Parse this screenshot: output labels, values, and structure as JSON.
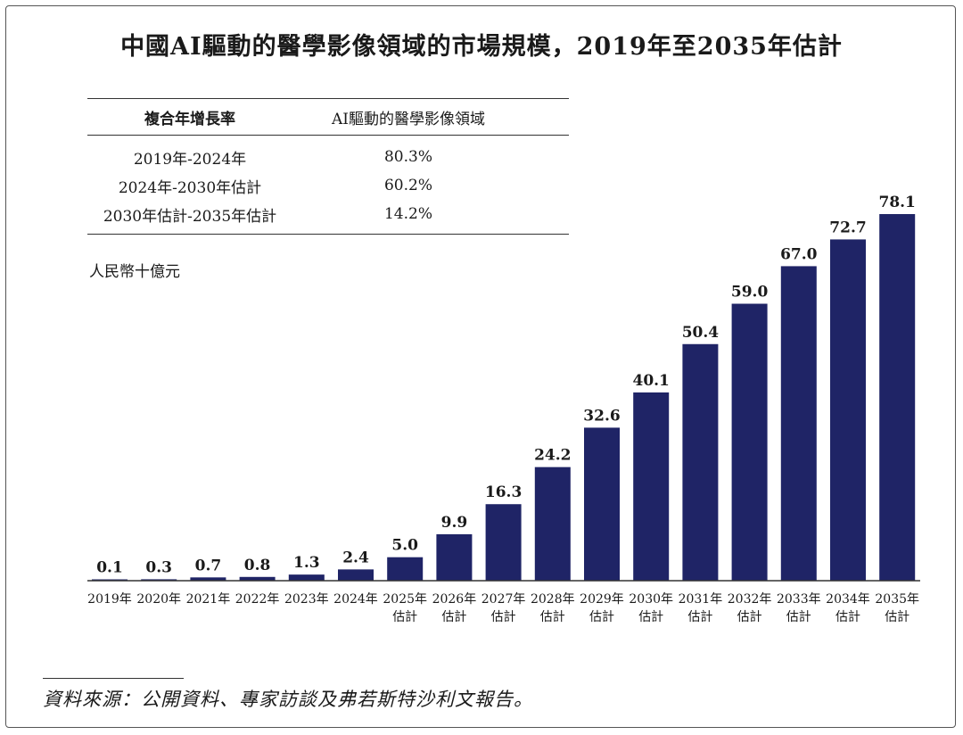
{
  "title": "中國AI驅動的醫學影像領域的市場規模，2019年至2035年估計",
  "cagr_table": {
    "headers": [
      "複合年增長率",
      "AI驅動的醫學影像領域"
    ],
    "rows": [
      {
        "period": "2019年-2024年",
        "value": "80.3%"
      },
      {
        "period": "2024年-2030年估計",
        "value": "60.2%"
      },
      {
        "period": "2030年估計-2035年估計",
        "value": "14.2%"
      }
    ]
  },
  "unit_label": "人民幣十億元",
  "source": "資料來源：公開資料、專家訪談及弗若斯特沙利文報告。",
  "colors": {
    "bar": "#1f2466",
    "text": "#1a1a1a"
  },
  "chart_data": {
    "type": "bar",
    "title": "中國AI驅動的醫學影像領域的市場規模，2019年至2035年估計",
    "ylabel": "人民幣十億元",
    "xlabel": "",
    "ylim": [
      0,
      80
    ],
    "grid": false,
    "categories": [
      [
        "2019年"
      ],
      [
        "2020年"
      ],
      [
        "2021年"
      ],
      [
        "2022年"
      ],
      [
        "2023年"
      ],
      [
        "2024年"
      ],
      [
        "2025年",
        "估計"
      ],
      [
        "2026年",
        "估計"
      ],
      [
        "2027年",
        "估計"
      ],
      [
        "2028年",
        "估計"
      ],
      [
        "2029年",
        "估計"
      ],
      [
        "2030年",
        "估計"
      ],
      [
        "2031年",
        "估計"
      ],
      [
        "2032年",
        "估計"
      ],
      [
        "2033年",
        "估計"
      ],
      [
        "2034年",
        "估計"
      ],
      [
        "2035年",
        "估計"
      ]
    ],
    "values": [
      0.1,
      0.3,
      0.7,
      0.8,
      1.3,
      2.4,
      5.0,
      9.9,
      16.3,
      24.2,
      32.6,
      40.1,
      50.4,
      59.0,
      67.0,
      72.7,
      78.1
    ],
    "value_labels": [
      "0.1",
      "0.3",
      "0.7",
      "0.8",
      "1.3",
      "2.4",
      "5.0",
      "9.9",
      "16.3",
      "24.2",
      "32.6",
      "40.1",
      "50.4",
      "59.0",
      "67.0",
      "72.7",
      "78.1"
    ]
  }
}
